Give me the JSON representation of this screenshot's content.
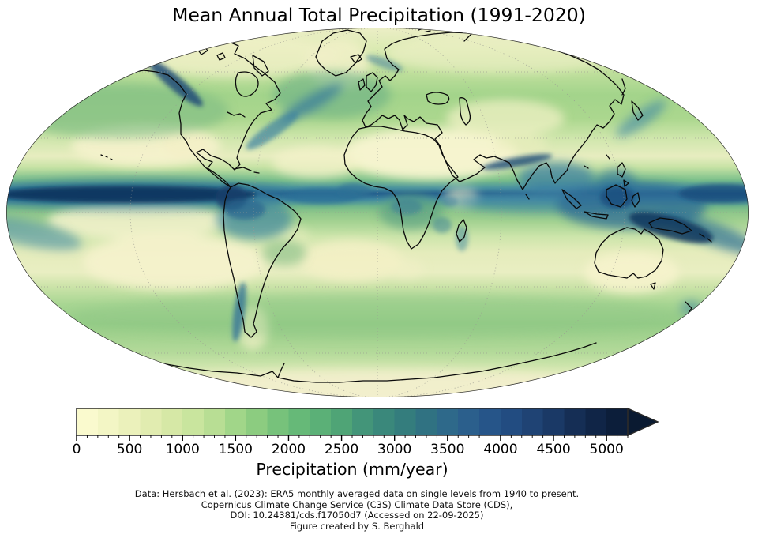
{
  "title": "Mean Annual Total Precipitation (1991-2020)",
  "map": {
    "projection": "Mollweide",
    "description": "Global mean annual total precipitation field 1991-2020",
    "coastline_color": "#0a0a0a",
    "graticule_color": "#9a9a92",
    "outline_color": "#2a2a2a"
  },
  "colorbar": {
    "label": "Precipitation (mm/year)",
    "min": 0,
    "max": 5200,
    "segment_step": 200,
    "minor_tick_interval": 100,
    "extend": "max",
    "tick_values": [
      0,
      500,
      1000,
      1500,
      2000,
      2500,
      3000,
      3500,
      4000,
      4500,
      5000
    ],
    "tick_labels": [
      "0",
      "500",
      "1000",
      "1500",
      "2000",
      "2500",
      "3000",
      "3500",
      "4000",
      "4500",
      "5000"
    ],
    "segment_colors": [
      "#faface",
      "#f3f6c5",
      "#ebf1bb",
      "#e1ecb0",
      "#d6e8a6",
      "#c9e59e",
      "#b8de94",
      "#a1d689",
      "#8ccc80",
      "#77c27b",
      "#66b978",
      "#5bb077",
      "#4fa476",
      "#439579",
      "#3a887b",
      "#347d7d",
      "#307282",
      "#2e698a",
      "#2b5f8c",
      "#265589",
      "#224c81",
      "#1f4374",
      "#1a3966",
      "#152e55",
      "#102547",
      "#0c1e3a"
    ],
    "arrow_color": "#0a1a31"
  },
  "attribution": {
    "lines": [
      "Data: Hersbach et al. (2023): ERA5 monthly averaged data on single levels from 1940 to present.",
      "Copernicus Climate Change Service (C3S) Climate Data Store (CDS),",
      "DOI: 10.24381/cds.f17050d7 (Accessed on 22-09-2025)",
      "Figure created by S. Berghald"
    ]
  }
}
